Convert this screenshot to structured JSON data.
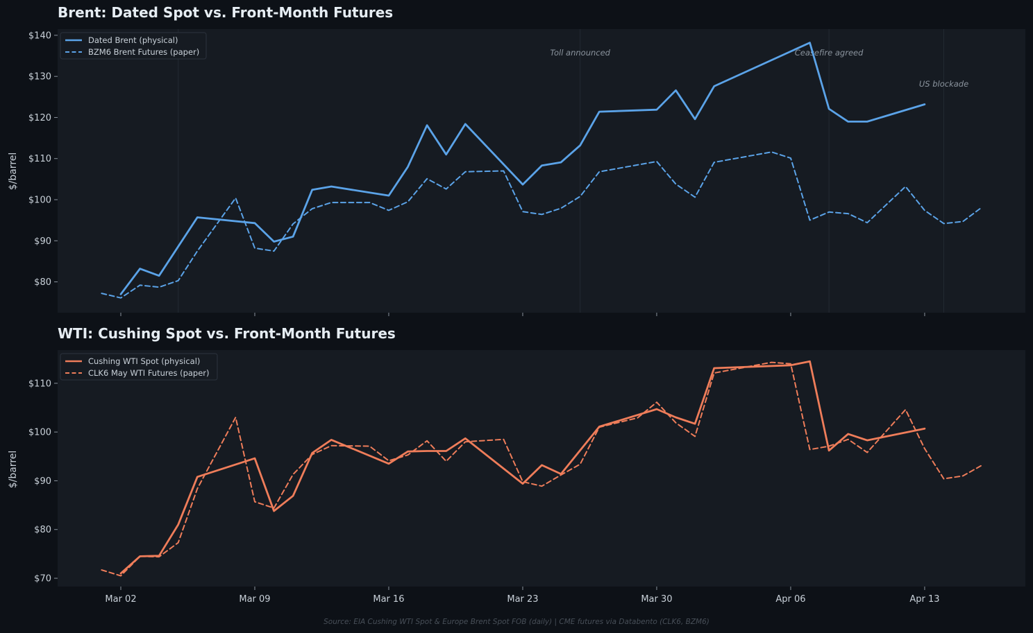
{
  "colors": {
    "background": "#0d1117",
    "panel": "#161b22",
    "brent": "#5ba3e8",
    "wti": "#ef7d5a",
    "grid": "#232a33"
  },
  "x_ticks": [
    "Mar 02",
    "Mar 09",
    "Mar 16",
    "Mar 23",
    "Mar 30",
    "Apr 06",
    "Apr 13"
  ],
  "source_note": "Source: EIA Cushing WTI Spot & Europe Brent Spot FOB (daily)  |  CME futures via Databento (CLK6, BZM6)",
  "chart_data": [
    {
      "type": "line",
      "title": "Brent: Dated Spot vs. Front-Month Futures",
      "ylabel": "$/barrel",
      "ylim": [
        72.5,
        141.5
      ],
      "yticks": [
        {
          "value": 80,
          "label": "$80"
        },
        {
          "value": 90,
          "label": "$90"
        },
        {
          "value": 100,
          "label": "$100"
        },
        {
          "value": 110,
          "label": "$110"
        },
        {
          "value": 120,
          "label": "$120"
        },
        {
          "value": 130,
          "label": "$130"
        },
        {
          "value": 140,
          "label": "$140"
        }
      ],
      "legend_position": "top-left",
      "grid": false,
      "series": [
        {
          "name": "Dated Brent (physical)",
          "style": "solid",
          "points": [
            [
              "2026-03-02",
              77.0
            ],
            [
              "2026-03-03",
              83.2
            ],
            [
              "2026-03-04",
              81.5
            ],
            [
              "2026-03-06",
              95.7
            ],
            [
              "2026-03-09",
              94.3
            ],
            [
              "2026-03-10",
              89.8
            ],
            [
              "2026-03-11",
              91.0
            ],
            [
              "2026-03-12",
              102.4
            ],
            [
              "2026-03-13",
              103.2
            ],
            [
              "2026-03-16",
              101.0
            ],
            [
              "2026-03-17",
              108.0
            ],
            [
              "2026-03-18",
              118.1
            ],
            [
              "2026-03-19",
              111.0
            ],
            [
              "2026-03-20",
              118.4
            ],
            [
              "2026-03-23",
              103.7
            ],
            [
              "2026-03-24",
              108.3
            ],
            [
              "2026-03-25",
              109.1
            ],
            [
              "2026-03-26",
              113.2
            ],
            [
              "2026-03-27",
              121.4
            ],
            [
              "2026-03-30",
              121.9
            ],
            [
              "2026-03-31",
              126.6
            ],
            [
              "2026-04-01",
              119.6
            ],
            [
              "2026-04-02",
              127.6
            ],
            [
              "2026-04-07",
              138.2
            ],
            [
              "2026-04-08",
              122.1
            ],
            [
              "2026-04-09",
              119.0
            ],
            [
              "2026-04-10",
              119.0
            ],
            [
              "2026-04-13",
              123.2
            ]
          ]
        },
        {
          "name": "BZM6 Brent Futures (paper)",
          "style": "dashed",
          "points": [
            [
              "2026-03-01",
              77.2
            ],
            [
              "2026-03-02",
              76.1
            ],
            [
              "2026-03-03",
              79.2
            ],
            [
              "2026-03-04",
              78.7
            ],
            [
              "2026-03-05",
              80.3
            ],
            [
              "2026-03-06",
              87.5
            ],
            [
              "2026-03-08",
              100.4
            ],
            [
              "2026-03-09",
              88.2
            ],
            [
              "2026-03-10",
              87.5
            ],
            [
              "2026-03-11",
              94.1
            ],
            [
              "2026-03-12",
              97.8
            ],
            [
              "2026-03-13",
              99.3
            ],
            [
              "2026-03-15",
              99.3
            ],
            [
              "2026-03-16",
              97.4
            ],
            [
              "2026-03-17",
              99.5
            ],
            [
              "2026-03-18",
              105.1
            ],
            [
              "2026-03-19",
              102.6
            ],
            [
              "2026-03-20",
              106.8
            ],
            [
              "2026-03-22",
              107.0
            ],
            [
              "2026-03-23",
              97.1
            ],
            [
              "2026-03-24",
              96.4
            ],
            [
              "2026-03-25",
              97.9
            ],
            [
              "2026-03-26",
              100.8
            ],
            [
              "2026-03-27",
              106.8
            ],
            [
              "2026-03-30",
              109.3
            ],
            [
              "2026-03-31",
              103.8
            ],
            [
              "2026-04-01",
              100.6
            ],
            [
              "2026-04-02",
              109.1
            ],
            [
              "2026-04-05",
              111.6
            ],
            [
              "2026-04-06",
              110.1
            ],
            [
              "2026-04-07",
              95.0
            ],
            [
              "2026-04-08",
              97.0
            ],
            [
              "2026-04-09",
              96.6
            ],
            [
              "2026-04-10",
              94.4
            ],
            [
              "2026-04-12",
              103.2
            ],
            [
              "2026-04-13",
              97.4
            ],
            [
              "2026-04-14",
              94.2
            ],
            [
              "2026-04-15",
              94.7
            ],
            [
              "2026-04-16",
              98.2
            ]
          ]
        }
      ],
      "annotations": [
        {
          "date": "2026-03-05",
          "text": ""
        },
        {
          "date": "2026-03-26",
          "text": "Toll announced"
        },
        {
          "date": "2026-04-08",
          "text": "Ceasefire agreed"
        },
        {
          "date": "2026-04-14",
          "text": "US blockade"
        }
      ]
    },
    {
      "type": "line",
      "title": "WTI: Cushing Spot vs. Front-Month Futures",
      "ylabel": "$/barrel",
      "ylim": [
        68.3,
        116.8
      ],
      "yticks": [
        {
          "value": 70,
          "label": "$70"
        },
        {
          "value": 80,
          "label": "$80"
        },
        {
          "value": 90,
          "label": "$90"
        },
        {
          "value": 100,
          "label": "$100"
        },
        {
          "value": 110,
          "label": "$110"
        }
      ],
      "legend_position": "top-left",
      "grid": false,
      "series": [
        {
          "name": "Cushing WTI Spot (physical)",
          "style": "solid",
          "points": [
            [
              "2026-03-02",
              71.0
            ],
            [
              "2026-03-03",
              74.5
            ],
            [
              "2026-03-04",
              74.6
            ],
            [
              "2026-03-05",
              81.0
            ],
            [
              "2026-03-06",
              90.8
            ],
            [
              "2026-03-09",
              94.6
            ],
            [
              "2026-03-10",
              83.8
            ],
            [
              "2026-03-11",
              86.9
            ],
            [
              "2026-03-12",
              95.7
            ],
            [
              "2026-03-13",
              98.4
            ],
            [
              "2026-03-16",
              93.5
            ],
            [
              "2026-03-17",
              96.0
            ],
            [
              "2026-03-18",
              96.1
            ],
            [
              "2026-03-19",
              96.1
            ],
            [
              "2026-03-20",
              98.7
            ],
            [
              "2026-03-23",
              89.4
            ],
            [
              "2026-03-24",
              93.2
            ],
            [
              "2026-03-25",
              91.4
            ],
            [
              "2026-03-27",
              101.1
            ],
            [
              "2026-03-30",
              104.7
            ],
            [
              "2026-03-31",
              103.0
            ],
            [
              "2026-04-01",
              101.7
            ],
            [
              "2026-04-02",
              113.1
            ],
            [
              "2026-04-06",
              113.7
            ],
            [
              "2026-04-07",
              114.5
            ],
            [
              "2026-04-08",
              96.2
            ],
            [
              "2026-04-09",
              99.6
            ],
            [
              "2026-04-10",
              98.3
            ],
            [
              "2026-04-13",
              100.7
            ]
          ]
        },
        {
          "name": "CLK6 May WTI Futures (paper)",
          "style": "dashed",
          "points": [
            [
              "2026-03-01",
              71.7
            ],
            [
              "2026-03-02",
              70.5
            ],
            [
              "2026-03-03",
              74.5
            ],
            [
              "2026-03-04",
              74.4
            ],
            [
              "2026-03-05",
              77.3
            ],
            [
              "2026-03-06",
              88.4
            ],
            [
              "2026-03-08",
              103.0
            ],
            [
              "2026-03-09",
              85.7
            ],
            [
              "2026-03-10",
              84.4
            ],
            [
              "2026-03-11",
              91.3
            ],
            [
              "2026-03-12",
              95.4
            ],
            [
              "2026-03-13",
              97.2
            ],
            [
              "2026-03-15",
              97.1
            ],
            [
              "2026-03-16",
              94.1
            ],
            [
              "2026-03-17",
              95.3
            ],
            [
              "2026-03-18",
              98.2
            ],
            [
              "2026-03-19",
              94.0
            ],
            [
              "2026-03-20",
              98.0
            ],
            [
              "2026-03-22",
              98.5
            ],
            [
              "2026-03-23",
              89.8
            ],
            [
              "2026-03-24",
              88.9
            ],
            [
              "2026-03-25",
              91.2
            ],
            [
              "2026-03-26",
              93.4
            ],
            [
              "2026-03-27",
              101.0
            ],
            [
              "2026-03-29",
              102.9
            ],
            [
              "2026-03-30",
              106.1
            ],
            [
              "2026-03-31",
              101.9
            ],
            [
              "2026-04-01",
              99.1
            ],
            [
              "2026-04-02",
              112.1
            ],
            [
              "2026-04-05",
              114.3
            ],
            [
              "2026-04-06",
              114.0
            ],
            [
              "2026-04-07",
              96.4
            ],
            [
              "2026-04-08",
              97.1
            ],
            [
              "2026-04-09",
              98.5
            ],
            [
              "2026-04-10",
              95.8
            ],
            [
              "2026-04-12",
              104.6
            ],
            [
              "2026-04-13",
              96.6
            ],
            [
              "2026-04-14",
              90.4
            ],
            [
              "2026-04-15",
              91.0
            ],
            [
              "2026-04-16",
              93.2
            ]
          ]
        }
      ],
      "annotations": []
    }
  ]
}
